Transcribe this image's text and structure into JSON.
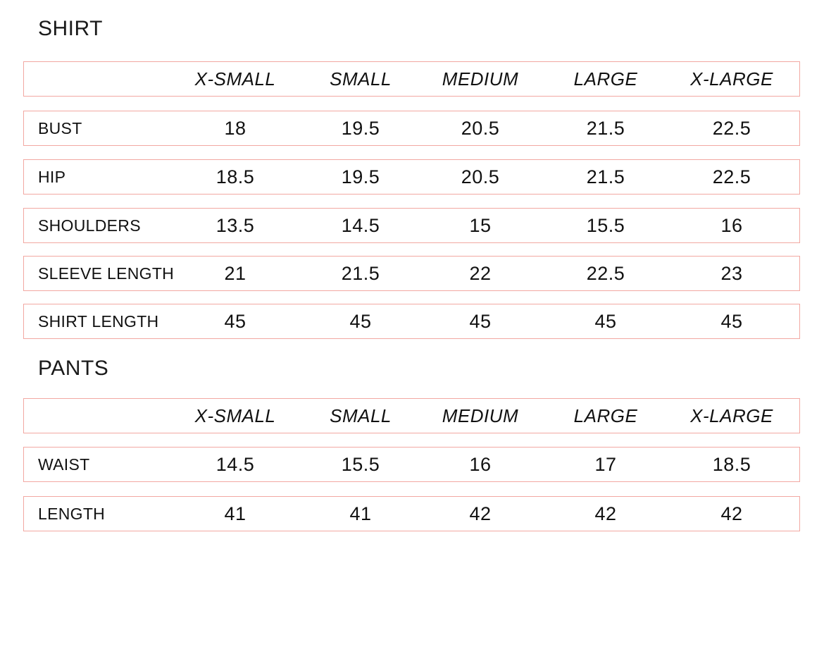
{
  "shirt": {
    "title": "SHIRT",
    "headers": [
      "X-SMALL",
      "SMALL",
      "MEDIUM",
      "LARGE",
      "X-LARGE"
    ],
    "rows": [
      {
        "label": "BUST",
        "values": [
          "18",
          "19.5",
          "20.5",
          "21.5",
          "22.5"
        ]
      },
      {
        "label": "HIP",
        "values": [
          "18.5",
          "19.5",
          "20.5",
          "21.5",
          "22.5"
        ]
      },
      {
        "label": "SHOULDERS",
        "values": [
          "13.5",
          "14.5",
          "15",
          "15.5",
          "16"
        ]
      },
      {
        "label": "SLEEVE LENGTH",
        "values": [
          "21",
          "21.5",
          "22",
          "22.5",
          "23"
        ]
      },
      {
        "label": "SHIRT LENGTH",
        "values": [
          "45",
          "45",
          "45",
          "45",
          "45"
        ]
      }
    ]
  },
  "pants": {
    "title": "PANTS",
    "headers": [
      "X-SMALL",
      "SMALL",
      "MEDIUM",
      "LARGE",
      "X-LARGE"
    ],
    "rows": [
      {
        "label": "WAIST",
        "values": [
          "14.5",
          "15.5",
          "16",
          "17",
          "18.5"
        ]
      },
      {
        "label": "LENGTH",
        "values": [
          "41",
          "41",
          "42",
          "42",
          "42"
        ]
      }
    ]
  },
  "colors": {
    "row_border": "#f2a8a2",
    "text": "#111111"
  }
}
